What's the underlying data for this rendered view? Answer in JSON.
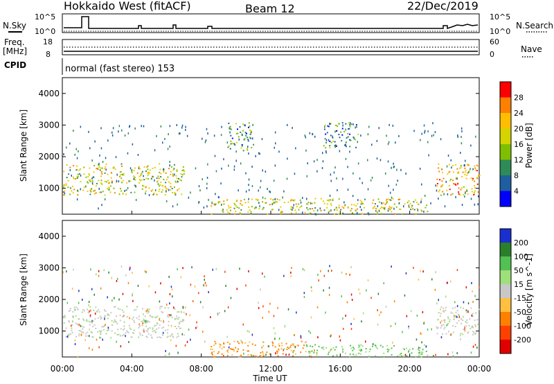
{
  "header": {
    "radar": "Hokkaido West (fitACF)",
    "beam": "Beam 12",
    "date": "22/Dec/2019"
  },
  "panels": {
    "nsky_label": "N.Sky",
    "nsearch_label": "N.Search",
    "freq_label": "Freq.",
    "freq_unit": "[MHz]",
    "nave_label": "Nave",
    "cpid_label": "CPID",
    "cpid_text": "normal (fast stereo) 153",
    "noise_ticks_left": [
      "10^5",
      "10^0"
    ],
    "noise_ticks_right": [
      "10^5",
      "10^0"
    ],
    "freq_ticks": [
      "18",
      "8"
    ],
    "nave_ticks": [
      "60",
      "0"
    ]
  },
  "colorbars": {
    "power": {
      "label": "Power [dB]",
      "ticks": [
        "28",
        "24",
        "20",
        "16",
        "12",
        "8",
        "4"
      ],
      "colors": [
        "#ff0000",
        "#ff7f00",
        "#ffbf00",
        "#d4d400",
        "#7fbf00",
        "#2e8b57",
        "#1e5fa0",
        "#0000ff"
      ]
    },
    "velocity": {
      "label": "Velocity [m s^-1]",
      "ticks": [
        "200",
        "100",
        "50",
        "15",
        "-15",
        "-50",
        "-100",
        "-200"
      ],
      "colors": [
        "#1a2fd0",
        "#2a7f2a",
        "#52c052",
        "#9ee07a",
        "#c8c8c8",
        "#ffbf40",
        "#ff8000",
        "#ff4000",
        "#e00000"
      ]
    }
  },
  "chart_data": [
    {
      "type": "heatmap",
      "title": "Power",
      "xlabel": "",
      "ylabel": "Slant Range [km]",
      "xlim": [
        "00:00",
        "24:00"
      ],
      "ylim": [
        180,
        4500
      ],
      "y_ticks": [
        1000,
        2000,
        3000,
        4000
      ],
      "zlabel": "Power [dB]",
      "features": [
        {
          "t_start": 0.0,
          "t_end": 7.0,
          "range_min": 800,
          "range_max": 1800,
          "level_db": 18
        },
        {
          "t_start": 8.5,
          "t_end": 21.0,
          "range_min": 200,
          "range_max": 700,
          "level_db": 16
        },
        {
          "t_start": 21.5,
          "t_end": 24.0,
          "range_min": 800,
          "range_max": 1800,
          "level_db": 20
        },
        {
          "t_start": 9.5,
          "t_end": 11.0,
          "range_min": 2200,
          "range_max": 3100,
          "level_db": 10
        },
        {
          "t_start": 15.0,
          "t_end": 17.0,
          "range_min": 2300,
          "range_max": 3100,
          "level_db": 8
        }
      ]
    },
    {
      "type": "heatmap",
      "title": "Velocity",
      "xlabel": "Time UT",
      "ylabel": "Slant Range [km]",
      "xlim": [
        "00:00",
        "24:00"
      ],
      "ylim": [
        180,
        4500
      ],
      "y_ticks": [
        1000,
        2000,
        3000,
        4000
      ],
      "x_ticks": [
        "00:00",
        "04:00",
        "08:00",
        "12:00",
        "16:00",
        "20:00",
        "00:00"
      ],
      "zlabel": "Velocity [m s^-1]",
      "features": [
        {
          "t_start": 0.0,
          "t_end": 7.0,
          "range_min": 800,
          "range_max": 1800,
          "velocity": 0
        },
        {
          "t_start": 8.5,
          "t_end": 14.0,
          "range_min": 200,
          "range_max": 700,
          "velocity": -50
        },
        {
          "t_start": 14.0,
          "t_end": 21.0,
          "range_min": 200,
          "range_max": 600,
          "velocity": 30
        },
        {
          "t_start": 21.5,
          "t_end": 24.0,
          "range_min": 900,
          "range_max": 1800,
          "velocity": 0
        }
      ]
    }
  ]
}
